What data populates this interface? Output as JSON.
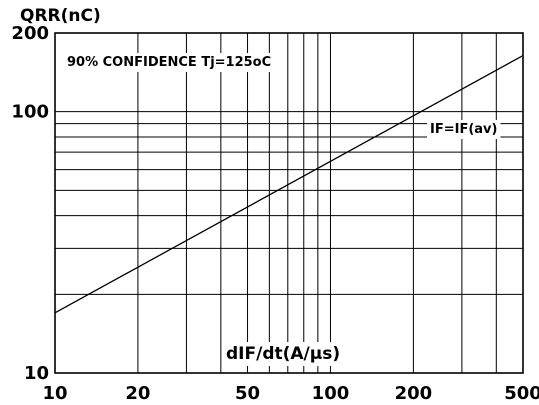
{
  "chart_data": {
    "type": "line",
    "title": "",
    "xlabel": "dIF/dt(A/µs)",
    "ylabel": "QRR(nC)",
    "x_scale": "log",
    "y_scale": "log",
    "xlim": [
      10,
      500
    ],
    "ylim": [
      10,
      200
    ],
    "grid": true,
    "x_ticks": [
      10,
      20,
      50,
      100,
      200,
      500
    ],
    "x_tick_labels": [
      "10",
      "20",
      "50",
      "100",
      "200",
      "500"
    ],
    "y_ticks": [
      10,
      100,
      200
    ],
    "y_tick_labels": [
      "10",
      "100",
      "200"
    ],
    "series": [
      {
        "name": "IF=IF(av)",
        "x": [
          10,
          500
        ],
        "y": [
          17,
          164
        ]
      }
    ],
    "annotations": [
      {
        "text": "90% CONFIDENCE Tj=125oC"
      }
    ],
    "colors": {
      "line": "#000000",
      "grid": "#000000",
      "background": "#ffffff"
    }
  }
}
